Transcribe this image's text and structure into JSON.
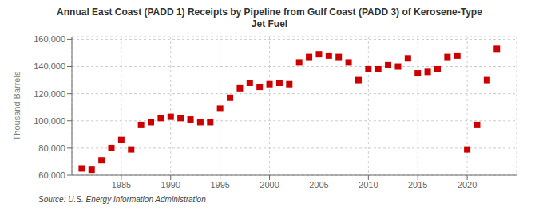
{
  "chart_data": {
    "type": "scatter",
    "title": "Annual East Coast (PADD 1) Receipts by Pipeline from Gulf Coast (PADD 3) of Kerosene-Type\nJet Fuel",
    "ylabel": "Thousand Barrels",
    "annotations": [
      "Source: U.S. Energy Information Administration"
    ],
    "color": "#cc0000",
    "marker": "square",
    "grid": true,
    "xlim": [
      1980,
      2025
    ],
    "xticks": [
      1985,
      1990,
      1995,
      2000,
      2005,
      2010,
      2015,
      2020
    ],
    "ylim": [
      60000,
      162000
    ],
    "yticks": [
      {
        "value": 60000,
        "label": "60,000"
      },
      {
        "value": 80000,
        "label": "80,000"
      },
      {
        "value": 100000,
        "label": "100,000"
      },
      {
        "value": 120000,
        "label": "120,000"
      },
      {
        "value": 140000,
        "label": "140,000"
      },
      {
        "value": 160000,
        "label": "160,000"
      }
    ],
    "x": [
      1981,
      1982,
      1983,
      1984,
      1985,
      1986,
      1987,
      1988,
      1989,
      1990,
      1991,
      1992,
      1993,
      1994,
      1995,
      1996,
      1997,
      1998,
      1999,
      2000,
      2001,
      2002,
      2003,
      2004,
      2005,
      2006,
      2007,
      2008,
      2009,
      2010,
      2011,
      2012,
      2013,
      2014,
      2015,
      2016,
      2017,
      2018,
      2019,
      2020,
      2021,
      2022,
      2023
    ],
    "values": [
      65000,
      64000,
      71000,
      80000,
      86000,
      79000,
      97000,
      99000,
      102000,
      103000,
      102000,
      101000,
      99000,
      99000,
      109000,
      117000,
      124000,
      128000,
      125000,
      127000,
      128000,
      127000,
      143000,
      147000,
      149000,
      148000,
      147000,
      143000,
      130000,
      138000,
      138000,
      141000,
      140000,
      146000,
      135000,
      136000,
      138000,
      147000,
      148000,
      79000,
      97000,
      130000,
      153000
    ]
  }
}
